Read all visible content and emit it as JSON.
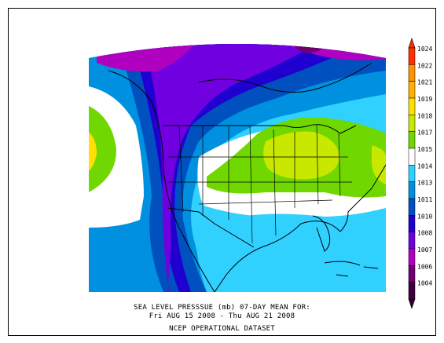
{
  "caption": {
    "line1": "SEA LEVEL PRESSSUE (mb)   07-DAY MEAN FOR:",
    "line2": "Fri AUG 15 2008 - Thu AUG 21 2008",
    "line3": "NCEP OPERATIONAL DATASET"
  },
  "colorbar": {
    "labels": [
      "1024",
      "1022",
      "1021",
      "1019",
      "1018",
      "1017",
      "1015",
      "1014",
      "1013",
      "1011",
      "1010",
      "1008",
      "1007",
      "1006",
      "1004"
    ],
    "colors": [
      "#ff3000",
      "#ff9000",
      "#ffb000",
      "#ffe000",
      "#c8e800",
      "#70d800",
      "#ffffff",
      "#30d0ff",
      "#0090e0",
      "#0050c0",
      "#2000d0",
      "#7000e0",
      "#b000c0",
      "#700070",
      "#400040"
    ]
  },
  "map": {
    "variable": "sea level pressure",
    "units": "mb",
    "region": "north-america",
    "colors": {
      "very_low": "#700070",
      "low_magenta": "#b000c0",
      "low_violet": "#7000e0",
      "low_blue": "#2000d0",
      "mid_blue": "#0050c0",
      "light_blue": "#0090e0",
      "cyan": "#30d0ff",
      "neutral": "#ffffff",
      "green": "#70d800",
      "yellow_green": "#c8e800",
      "yellow": "#ffe000",
      "outline": "#000000"
    }
  }
}
